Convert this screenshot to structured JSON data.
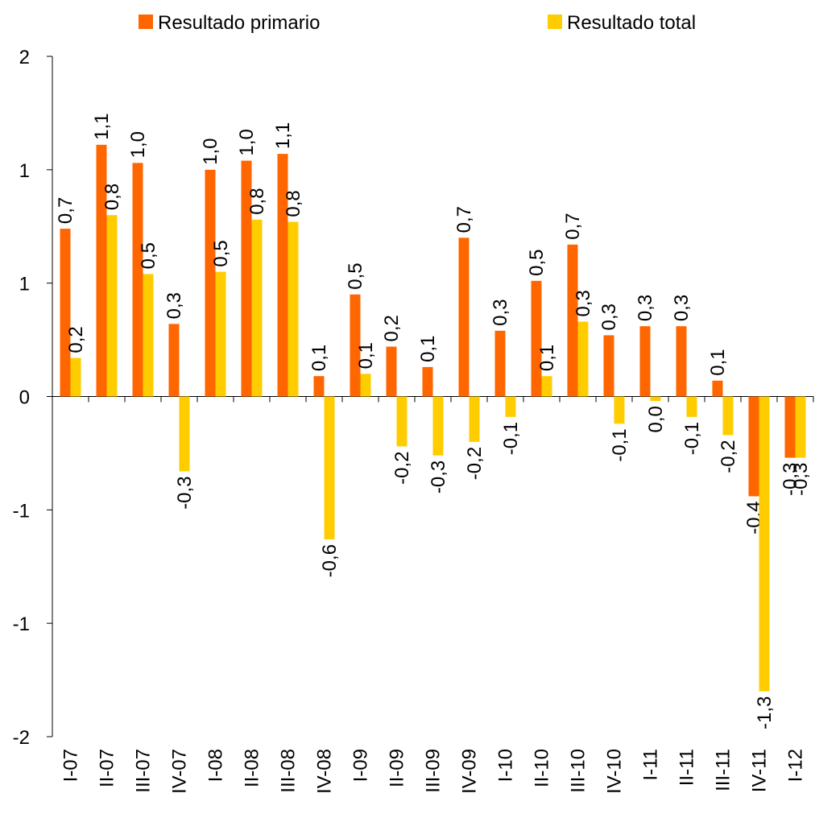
{
  "chart_data": {
    "type": "bar",
    "categories": [
      "I-07",
      "II-07",
      "III-07",
      "IV-07",
      "I-08",
      "II-08",
      "III-08",
      "IV-08",
      "I-09",
      "II-09",
      "III-09",
      "IV-09",
      "I-10",
      "II-10",
      "III-10",
      "IV-10",
      "I-11",
      "II-11",
      "III-11",
      "IV-11",
      "I-12"
    ],
    "series": [
      {
        "name": "Resultado primario",
        "color": "#ff6600",
        "values": [
          0.74,
          1.11,
          1.03,
          0.32,
          1.0,
          1.04,
          1.07,
          0.09,
          0.45,
          0.22,
          0.13,
          0.7,
          0.29,
          0.51,
          0.67,
          0.27,
          0.31,
          0.31,
          0.07,
          -0.44,
          -0.27
        ],
        "value_labels": [
          "0,7",
          "1,1",
          "1,0",
          "0,3",
          "1,0",
          "1,0",
          "1,1",
          "0,1",
          "0,5",
          "0,2",
          "0,1",
          "0,7",
          "0,3",
          "0,5",
          "0,7",
          "0,3",
          "0,3",
          "0,3",
          "0,1",
          "-0,4",
          "-0,3"
        ]
      },
      {
        "name": "Resultado total",
        "color": "#ffcc00",
        "values": [
          0.17,
          0.8,
          0.54,
          -0.33,
          0.55,
          0.78,
          0.77,
          -0.63,
          0.1,
          -0.22,
          -0.26,
          -0.2,
          -0.09,
          0.09,
          0.33,
          -0.12,
          -0.02,
          -0.09,
          -0.17,
          -1.3,
          -0.27
        ],
        "value_labels": [
          "0,2",
          "0,8",
          "0,5",
          "-0,3",
          "0,5",
          "0,8",
          "0,8",
          "-0,6",
          "0,1",
          "-0,2",
          "-0,3",
          "-0,2",
          "-0,1",
          "0,1",
          "0,3",
          "-0,1",
          "0,0",
          "-0,1",
          "-0,2",
          "-1,3",
          "-0,3"
        ]
      }
    ],
    "ylim": [
      -1.5,
      1.5
    ],
    "yticks": [
      {
        "value": -1.5,
        "label": "-2"
      },
      {
        "value": -1,
        "label": "-1"
      },
      {
        "value": -0.5,
        "label": "-1"
      },
      0,
      {
        "value": 0.5,
        "label": "1"
      },
      {
        "value": 1,
        "label": "1"
      },
      {
        "value": 1.5,
        "label": "2"
      }
    ],
    "grid": false,
    "legend": "top"
  }
}
